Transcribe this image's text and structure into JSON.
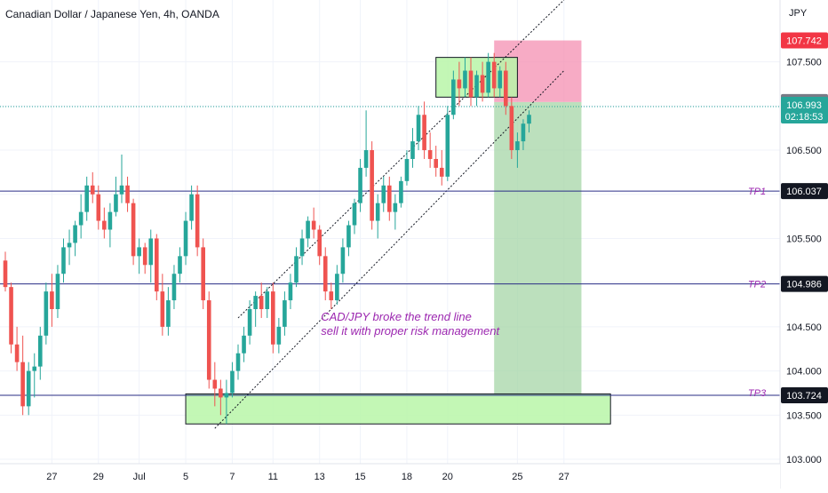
{
  "chart_data": {
    "type": "candlestick",
    "title": "Canadian Dollar / Japanese Yen, 4h, OANDA",
    "currency": "JPY",
    "ylim": [
      102.95,
      108.2
    ],
    "y_ticks": [
      "103.000",
      "103.500",
      "104.000",
      "104.500",
      "105.000",
      "105.500",
      "106.000",
      "106.500",
      "107.000",
      "107.500"
    ],
    "x_labels": [
      {
        "label": "27",
        "bar": 8
      },
      {
        "label": "29",
        "bar": 16
      },
      {
        "label": "Jul",
        "bar": 23
      },
      {
        "label": "5",
        "bar": 31
      },
      {
        "label": "7",
        "bar": 39
      },
      {
        "label": "11",
        "bar": 46
      },
      {
        "label": "13",
        "bar": 54
      },
      {
        "label": "15",
        "bar": 61
      },
      {
        "label": "18",
        "bar": 69
      },
      {
        "label": "20",
        "bar": 76
      },
      {
        "label": "25",
        "bar": 88
      },
      {
        "label": "27",
        "bar": 96
      }
    ],
    "bar_count": 104,
    "candles": [
      [
        105.25,
        105.35,
        104.9,
        104.95
      ],
      [
        104.95,
        105.0,
        104.2,
        104.3
      ],
      [
        104.3,
        104.5,
        104.0,
        104.1
      ],
      [
        104.1,
        104.4,
        103.5,
        103.6
      ],
      [
        103.6,
        104.1,
        103.5,
        104.0
      ],
      [
        104.0,
        104.2,
        103.7,
        104.05
      ],
      [
        104.05,
        104.5,
        103.9,
        104.4
      ],
      [
        104.4,
        105.0,
        104.3,
        104.9
      ],
      [
        104.9,
        105.1,
        104.5,
        104.7
      ],
      [
        104.7,
        105.2,
        104.6,
        105.1
      ],
      [
        105.1,
        105.5,
        105.0,
        105.4
      ],
      [
        105.4,
        105.6,
        105.2,
        105.45
      ],
      [
        105.45,
        105.7,
        105.3,
        105.65
      ],
      [
        105.65,
        106.0,
        105.5,
        105.8
      ],
      [
        105.8,
        106.2,
        105.7,
        106.1
      ],
      [
        106.1,
        106.25,
        105.9,
        106.0
      ],
      [
        106.0,
        106.1,
        105.6,
        105.7
      ],
      [
        105.7,
        105.85,
        105.5,
        105.6
      ],
      [
        105.6,
        105.9,
        105.4,
        105.8
      ],
      [
        105.8,
        106.2,
        105.75,
        106.0
      ],
      [
        106.0,
        106.45,
        105.9,
        106.1
      ],
      [
        106.1,
        106.2,
        105.8,
        105.9
      ],
      [
        105.9,
        105.95,
        105.2,
        105.3
      ],
      [
        105.3,
        105.5,
        105.1,
        105.4
      ],
      [
        105.4,
        105.45,
        105.1,
        105.2
      ],
      [
        105.2,
        105.6,
        105.0,
        105.5
      ],
      [
        105.5,
        105.55,
        104.8,
        104.9
      ],
      [
        104.9,
        105.1,
        104.4,
        104.5
      ],
      [
        104.5,
        104.95,
        104.4,
        104.8
      ],
      [
        104.8,
        105.2,
        104.7,
        105.1
      ],
      [
        105.1,
        105.4,
        105.0,
        105.3
      ],
      [
        105.3,
        105.8,
        105.2,
        105.7
      ],
      [
        105.7,
        106.1,
        105.6,
        106.0
      ],
      [
        106.0,
        106.1,
        105.3,
        105.4
      ],
      [
        105.4,
        105.5,
        104.7,
        104.8
      ],
      [
        104.8,
        104.9,
        103.8,
        103.9
      ],
      [
        103.9,
        104.1,
        103.6,
        103.8
      ],
      [
        103.8,
        103.9,
        103.5,
        103.7
      ],
      [
        103.7,
        103.9,
        103.4,
        103.75
      ],
      [
        103.75,
        104.1,
        103.7,
        104.0
      ],
      [
        104.0,
        104.3,
        103.9,
        104.2
      ],
      [
        104.2,
        104.5,
        104.1,
        104.4
      ],
      [
        104.4,
        104.8,
        104.3,
        104.7
      ],
      [
        104.7,
        104.9,
        104.5,
        104.85
      ],
      [
        104.85,
        105.0,
        104.6,
        104.7
      ],
      [
        104.7,
        104.95,
        104.6,
        104.9
      ],
      [
        104.9,
        105.0,
        104.2,
        104.3
      ],
      [
        104.3,
        104.6,
        104.2,
        104.5
      ],
      [
        104.5,
        104.9,
        104.4,
        104.8
      ],
      [
        104.8,
        105.1,
        104.7,
        105.0
      ],
      [
        105.0,
        105.4,
        104.95,
        105.3
      ],
      [
        105.3,
        105.6,
        105.2,
        105.5
      ],
      [
        105.5,
        105.75,
        105.4,
        105.7
      ],
      [
        105.7,
        105.85,
        105.5,
        105.6
      ],
      [
        105.6,
        105.65,
        105.2,
        105.3
      ],
      [
        105.3,
        105.4,
        104.8,
        104.9
      ],
      [
        104.9,
        105.0,
        104.7,
        104.8
      ],
      [
        104.8,
        105.2,
        104.75,
        105.1
      ],
      [
        105.1,
        105.5,
        105.0,
        105.4
      ],
      [
        105.4,
        105.7,
        105.3,
        105.65
      ],
      [
        105.65,
        105.95,
        105.55,
        105.9
      ],
      [
        105.9,
        106.4,
        105.8,
        106.3
      ],
      [
        106.3,
        106.95,
        106.2,
        106.5
      ],
      [
        106.5,
        106.6,
        105.6,
        105.7
      ],
      [
        105.7,
        106.0,
        105.5,
        105.9
      ],
      [
        105.9,
        106.2,
        105.8,
        106.1
      ],
      [
        106.1,
        106.2,
        105.7,
        105.8
      ],
      [
        105.8,
        106.0,
        105.6,
        105.9
      ],
      [
        105.9,
        106.2,
        105.85,
        106.15
      ],
      [
        106.15,
        106.5,
        106.1,
        106.4
      ],
      [
        106.4,
        106.75,
        106.3,
        106.6
      ],
      [
        106.6,
        107.0,
        106.5,
        106.9
      ],
      [
        106.9,
        107.05,
        106.4,
        106.5
      ],
      [
        106.5,
        106.7,
        106.3,
        106.4
      ],
      [
        106.4,
        106.55,
        106.2,
        106.3
      ],
      [
        106.3,
        106.5,
        106.1,
        106.2
      ],
      [
        106.2,
        107.0,
        106.15,
        106.9
      ],
      [
        106.9,
        107.4,
        106.85,
        107.3
      ],
      [
        107.3,
        107.5,
        107.0,
        107.2
      ],
      [
        107.2,
        107.55,
        107.1,
        107.4
      ],
      [
        107.4,
        107.55,
        107.0,
        107.1
      ],
      [
        107.1,
        107.4,
        107.0,
        107.35
      ],
      [
        107.35,
        107.5,
        107.05,
        107.15
      ],
      [
        107.15,
        107.6,
        107.1,
        107.5
      ],
      [
        107.5,
        107.6,
        107.1,
        107.2
      ],
      [
        107.2,
        107.45,
        107.1,
        107.4
      ],
      [
        107.4,
        107.5,
        106.9,
        107.0
      ],
      [
        107.0,
        107.1,
        106.4,
        106.5
      ],
      [
        106.5,
        106.7,
        106.3,
        106.6
      ],
      [
        106.6,
        106.85,
        106.5,
        106.8
      ],
      [
        106.8,
        106.95,
        106.7,
        106.9
      ]
    ],
    "horizontal_levels": [
      {
        "label": "TP1",
        "value": "106.037",
        "price": 106.037,
        "color": "#2a2e86"
      },
      {
        "label": "TP2",
        "value": "104.986",
        "price": 104.986,
        "color": "#2a2e86"
      },
      {
        "label": "TP3",
        "value": "103.724",
        "price": 103.724,
        "color": "#2a2e86"
      }
    ],
    "stop_level": {
      "value": "107.742",
      "price": 107.742,
      "color": "#f23645"
    },
    "entry_level": {
      "value": "107.045",
      "price": 107.045,
      "color": "#787b86"
    },
    "current_price": {
      "value": "106.993",
      "countdown": "02:18:53",
      "price": 106.993,
      "color": "#26a69a"
    },
    "channel": {
      "upper": {
        "x1": 40,
        "y1": 104.6,
        "x2": 96,
        "y2": 108.2
      },
      "lower": {
        "x1": 36,
        "y1": 103.35,
        "x2": 96,
        "y2": 107.4
      }
    },
    "zones": {
      "support_zone": {
        "x1": 31,
        "x2": 104,
        "y1": 103.4,
        "y2": 103.74
      },
      "resistance_zone": {
        "x1": 74,
        "x2": 88,
        "y1": 107.1,
        "y2": 107.55
      },
      "risk_box": {
        "x1": 84,
        "x2": 99,
        "y1": 107.045,
        "y2": 107.742
      },
      "reward_box": {
        "x1": 84,
        "x2": 99,
        "y1": 103.724,
        "y2": 107.045
      }
    },
    "annotation": {
      "line1": "CAD/JPY broke the trend line",
      "line2": "sell it with proper risk management",
      "bar": 55,
      "price": 104.5,
      "color": "#9c27b0"
    },
    "colors": {
      "up": "#26a69a",
      "down": "#ef5350",
      "axis_text": "#131722",
      "grid": "#f0f3fa",
      "support_fill": "#b9f6a8",
      "risk_fill": "#f48fb1",
      "reward_fill": "#a5d6a7",
      "tp_label": "#9c27b0"
    }
  }
}
